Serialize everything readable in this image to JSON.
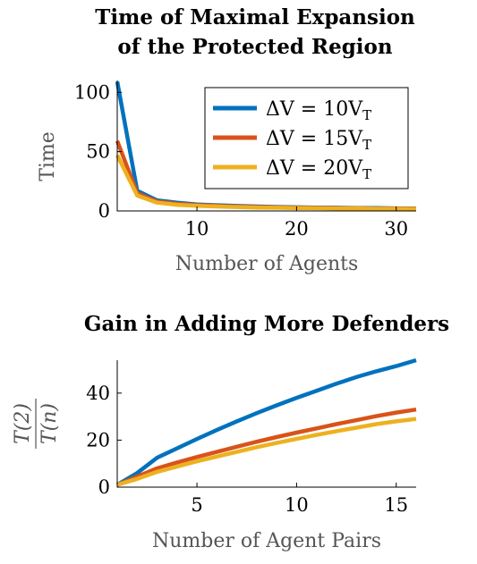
{
  "colors": {
    "blue": "#0072BD",
    "orange": "#D95319",
    "yellow": "#EDB120"
  },
  "chart_data": [
    {
      "type": "line",
      "title": "Time of Maximal Expansion\nof the Protected Region",
      "title_lines": [
        "Time of Maximal Expansion",
        "of the Protected Region"
      ],
      "xlabel": "Number of Agents",
      "ylabel": "Time",
      "xlim": [
        2,
        32
      ],
      "ylim": [
        0,
        110
      ],
      "xticks": [
        10,
        20,
        30
      ],
      "yticks": [
        0,
        50,
        100
      ],
      "legend_position": "top-right",
      "grid": false,
      "x": [
        2,
        4,
        6,
        8,
        10,
        12,
        14,
        16,
        18,
        20,
        22,
        24,
        26,
        28,
        30,
        32
      ],
      "series": [
        {
          "name": "ΔV = 10V",
          "name_sub": "T",
          "color": "blue",
          "values": [
            109,
            17,
            9,
            7,
            5.5,
            4.8,
            4.2,
            3.8,
            3.4,
            3.1,
            2.9,
            2.7,
            2.5,
            2.4,
            2.2,
            2.1
          ]
        },
        {
          "name": "ΔV = 15V",
          "name_sub": "T",
          "color": "orange",
          "values": [
            59,
            15,
            8,
            6,
            5,
            4.3,
            3.8,
            3.4,
            3.1,
            2.8,
            2.6,
            2.4,
            2.3,
            2.1,
            2.0,
            1.9
          ]
        },
        {
          "name": "ΔV = 20V",
          "name_sub": "T",
          "color": "yellow",
          "values": [
            47,
            13,
            7,
            5.2,
            4.4,
            3.8,
            3.3,
            2.9,
            2.7,
            2.5,
            2.3,
            2.1,
            2.0,
            1.9,
            1.8,
            1.7
          ]
        }
      ]
    },
    {
      "type": "line",
      "title": "Gain in Adding More Defenders",
      "xlabel": "Number of Agent Pairs",
      "ylabel": "T(2) / T(n)",
      "ylabel_num": "T(2)",
      "ylabel_den": "T(n)",
      "xlim": [
        1,
        16
      ],
      "ylim": [
        0,
        54
      ],
      "xticks": [
        5,
        10,
        15
      ],
      "yticks": [
        0,
        20,
        40
      ],
      "grid": false,
      "x": [
        1,
        2,
        3,
        4,
        5,
        6,
        7,
        8,
        9,
        10,
        11,
        12,
        13,
        14,
        15,
        16
      ],
      "series": [
        {
          "color": "blue",
          "values": [
            1,
            6,
            12.5,
            16.5,
            20.5,
            24.3,
            28,
            31.5,
            34.8,
            38,
            41,
            44,
            46.8,
            49.3,
            51.5,
            54
          ]
        },
        {
          "color": "orange",
          "values": [
            1,
            4.5,
            8,
            10.5,
            12.8,
            15,
            17.2,
            19.3,
            21.3,
            23.2,
            25,
            26.8,
            28.5,
            30.2,
            31.7,
            33
          ]
        },
        {
          "color": "yellow",
          "values": [
            1,
            3.5,
            6.5,
            8.8,
            11,
            13,
            15,
            17,
            18.8,
            20.5,
            22.2,
            23.8,
            25.3,
            26.8,
            28,
            29
          ]
        }
      ]
    }
  ]
}
